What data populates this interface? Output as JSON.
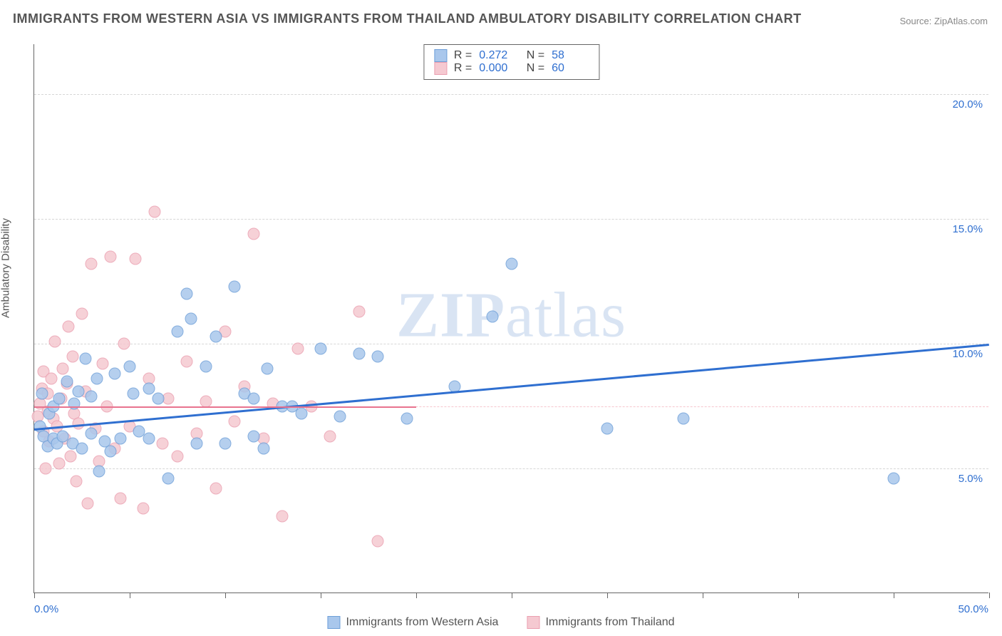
{
  "title": "IMMIGRANTS FROM WESTERN ASIA VS IMMIGRANTS FROM THAILAND AMBULATORY DISABILITY CORRELATION CHART",
  "source": "Source: ZipAtlas.com",
  "watermark_html": "<b>ZIP</b>atlas",
  "ylabel": "Ambulatory Disability",
  "chart": {
    "type": "scatter",
    "x_range": [
      0,
      50
    ],
    "y_range": [
      0,
      22
    ],
    "x_ticks_at": [
      0,
      5,
      10,
      15,
      20,
      25,
      30,
      35,
      40,
      45,
      50
    ],
    "x_tick_labels": {
      "0": "0.0%",
      "50": "50.0%"
    },
    "y_gridlines_at": [
      5,
      10,
      15,
      20
    ],
    "y_tick_labels": {
      "5": "5.0%",
      "10": "10.0%",
      "15": "15.0%",
      "20": "20.0%"
    },
    "pink_dashed_at_y": 7.5,
    "background_color": "#ffffff",
    "grid_color": "#d6d6d6",
    "series": [
      {
        "name": "Immigrants from Western Asia",
        "color_fill": "#a9c7ec",
        "color_stroke": "#6e9fd8",
        "r": 0.272,
        "n": 58,
        "trend": {
          "x1": 0,
          "y1": 6.6,
          "x2": 50,
          "y2": 10.0,
          "color": "#2f6fd0",
          "width": 2.5
        },
        "points": [
          [
            0.3,
            6.7
          ],
          [
            0.4,
            8.0
          ],
          [
            0.5,
            6.3
          ],
          [
            0.7,
            5.9
          ],
          [
            0.8,
            7.2
          ],
          [
            1.0,
            6.2
          ],
          [
            1.0,
            7.5
          ],
          [
            1.2,
            6.0
          ],
          [
            1.3,
            7.8
          ],
          [
            1.5,
            6.3
          ],
          [
            1.7,
            8.5
          ],
          [
            2.0,
            6.0
          ],
          [
            2.1,
            7.6
          ],
          [
            2.3,
            8.1
          ],
          [
            2.5,
            5.8
          ],
          [
            2.7,
            9.4
          ],
          [
            3.0,
            6.4
          ],
          [
            3.0,
            7.9
          ],
          [
            3.3,
            8.6
          ],
          [
            3.4,
            4.9
          ],
          [
            3.7,
            6.1
          ],
          [
            4.0,
            5.7
          ],
          [
            4.2,
            8.8
          ],
          [
            4.5,
            6.2
          ],
          [
            5.0,
            9.1
          ],
          [
            5.2,
            8.0
          ],
          [
            5.5,
            6.5
          ],
          [
            6.0,
            8.2
          ],
          [
            6.0,
            6.2
          ],
          [
            6.5,
            7.8
          ],
          [
            7.0,
            4.6
          ],
          [
            7.5,
            10.5
          ],
          [
            8.0,
            12.0
          ],
          [
            8.2,
            11.0
          ],
          [
            8.5,
            6.0
          ],
          [
            9.0,
            9.1
          ],
          [
            9.5,
            10.3
          ],
          [
            10.0,
            6.0
          ],
          [
            10.5,
            12.3
          ],
          [
            11.0,
            8.0
          ],
          [
            11.5,
            6.3
          ],
          [
            12.0,
            5.8
          ],
          [
            12.2,
            9.0
          ],
          [
            13.0,
            7.5
          ],
          [
            13.5,
            7.5
          ],
          [
            14.0,
            7.2
          ],
          [
            15.0,
            9.8
          ],
          [
            16.0,
            7.1
          ],
          [
            17.0,
            9.6
          ],
          [
            18.0,
            9.5
          ],
          [
            19.5,
            7.0
          ],
          [
            22.0,
            8.3
          ],
          [
            24.0,
            11.1
          ],
          [
            25.0,
            13.2
          ],
          [
            30.0,
            6.6
          ],
          [
            34.0,
            7.0
          ],
          [
            45.0,
            4.6
          ],
          [
            11.5,
            7.8
          ]
        ]
      },
      {
        "name": "Immigrants from Thailand",
        "color_fill": "#f5c9d1",
        "color_stroke": "#eb9fb0",
        "r": 0.0,
        "n": 60,
        "trend": {
          "x1": 0,
          "y1": 7.5,
          "x2": 20,
          "y2": 7.5,
          "color": "#e8738f",
          "width": 2
        },
        "points": [
          [
            0.2,
            7.1
          ],
          [
            0.3,
            7.6
          ],
          [
            0.4,
            8.2
          ],
          [
            0.5,
            6.5
          ],
          [
            0.5,
            8.9
          ],
          [
            0.6,
            5.0
          ],
          [
            0.7,
            7.3
          ],
          [
            0.7,
            8.0
          ],
          [
            0.8,
            6.1
          ],
          [
            0.9,
            8.6
          ],
          [
            1.0,
            7.0
          ],
          [
            1.1,
            10.1
          ],
          [
            1.2,
            6.7
          ],
          [
            1.3,
            5.2
          ],
          [
            1.4,
            7.8
          ],
          [
            1.5,
            9.0
          ],
          [
            1.6,
            6.2
          ],
          [
            1.7,
            8.4
          ],
          [
            1.8,
            10.7
          ],
          [
            1.9,
            5.5
          ],
          [
            2.0,
            9.5
          ],
          [
            2.1,
            7.2
          ],
          [
            2.2,
            4.5
          ],
          [
            2.3,
            6.8
          ],
          [
            2.5,
            11.2
          ],
          [
            2.7,
            8.1
          ],
          [
            2.8,
            3.6
          ],
          [
            3.0,
            13.2
          ],
          [
            3.2,
            6.6
          ],
          [
            3.4,
            5.3
          ],
          [
            3.6,
            9.2
          ],
          [
            3.8,
            7.5
          ],
          [
            4.0,
            13.5
          ],
          [
            4.2,
            5.8
          ],
          [
            4.5,
            3.8
          ],
          [
            4.7,
            10.0
          ],
          [
            5.0,
            6.7
          ],
          [
            5.3,
            13.4
          ],
          [
            5.7,
            3.4
          ],
          [
            6.0,
            8.6
          ],
          [
            6.3,
            15.3
          ],
          [
            6.7,
            6.0
          ],
          [
            7.0,
            7.8
          ],
          [
            7.5,
            5.5
          ],
          [
            8.0,
            9.3
          ],
          [
            8.5,
            6.4
          ],
          [
            9.0,
            7.7
          ],
          [
            9.5,
            4.2
          ],
          [
            10.0,
            10.5
          ],
          [
            10.5,
            6.9
          ],
          [
            11.0,
            8.3
          ],
          [
            11.5,
            14.4
          ],
          [
            12.0,
            6.2
          ],
          [
            12.5,
            7.6
          ],
          [
            13.0,
            3.1
          ],
          [
            14.5,
            7.5
          ],
          [
            15.5,
            6.3
          ],
          [
            17.0,
            11.3
          ],
          [
            18.0,
            2.1
          ],
          [
            13.8,
            9.8
          ]
        ]
      }
    ]
  },
  "stats_box": {
    "rows": [
      {
        "swatch_fill": "#a9c7ec",
        "swatch_stroke": "#6e9fd8",
        "r": "0.272",
        "n": "58"
      },
      {
        "swatch_fill": "#f5c9d1",
        "swatch_stroke": "#eb9fb0",
        "r": "0.000",
        "n": "60"
      }
    ]
  },
  "legend_bottom": [
    {
      "swatch_fill": "#a9c7ec",
      "swatch_stroke": "#6e9fd8",
      "label": "Immigrants from Western Asia"
    },
    {
      "swatch_fill": "#f5c9d1",
      "swatch_stroke": "#eb9fb0",
      "label": "Immigrants from Thailand"
    }
  ]
}
